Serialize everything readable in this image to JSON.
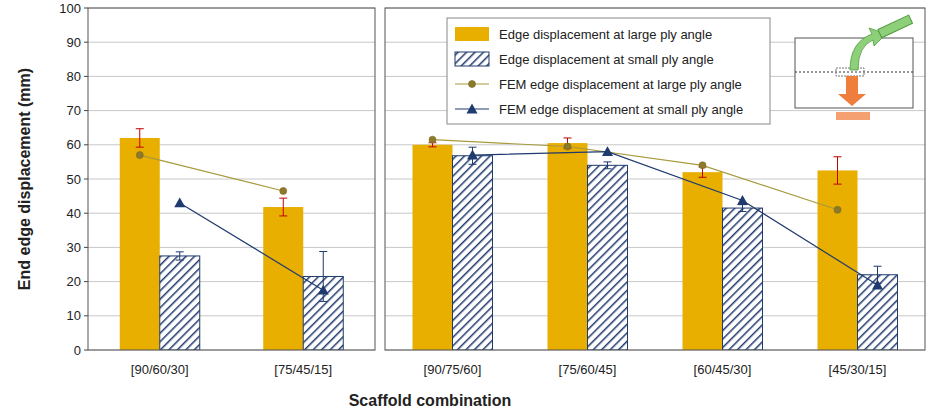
{
  "chart_data": [
    {
      "type": "bar",
      "y_label": "End edge displacement (mm)",
      "x_label": "Scaffold combination",
      "categories": [
        "[90/60/30]",
        "[75/45/15]"
      ],
      "ylim": [
        0,
        100
      ],
      "yticks": [
        0,
        10,
        20,
        30,
        40,
        50,
        60,
        70,
        80,
        90,
        100
      ],
      "grid": true,
      "series": [
        {
          "type": "bar",
          "color": "#E8AE00",
          "values": [
            62,
            41.8
          ],
          "errors": [
            2.7,
            2.6
          ]
        },
        {
          "type": "bar",
          "color": "#1F3A6E",
          "values": [
            27.5,
            21.5
          ],
          "errors": [
            1.2,
            7.3
          ]
        },
        {
          "type": "line",
          "color": "#A89A3C",
          "marker": "circle",
          "values": [
            57,
            46.5
          ]
        },
        {
          "type": "line",
          "color": "#1F3A6E",
          "marker": "triangle",
          "values": [
            43,
            17.5
          ]
        }
      ]
    },
    {
      "type": "bar",
      "categories": [
        "[90/75/60]",
        "[75/60/45]",
        "[60/45/30]",
        "[45/30/15]"
      ],
      "ylim": [
        0,
        100
      ],
      "yticks": [
        0,
        10,
        20,
        30,
        40,
        50,
        60,
        70,
        80,
        90,
        100
      ],
      "grid": true,
      "tick_labels": false,
      "legend": "top",
      "series": [
        {
          "type": "bar",
          "name": "Edge displacement at large ply angle",
          "color": "#E8AE00",
          "values": [
            60,
            60.5,
            52,
            52.5
          ],
          "errors": [
            0.6,
            1.5,
            1.5,
            4
          ]
        },
        {
          "type": "bar",
          "name": "Edge displacement at small ply angle",
          "color": "#1F3A6E",
          "values": [
            56.8,
            54,
            41.5,
            22
          ],
          "errors": [
            2.5,
            1,
            1,
            2.5
          ]
        },
        {
          "type": "line",
          "name": "FEM edge displacement at large ply angle",
          "color": "#A89A3C",
          "marker": "circle",
          "values": [
            61.5,
            59.5,
            54,
            41
          ]
        },
        {
          "type": "line",
          "name": "FEM edge displacement at small ply angle",
          "color": "#1F3A6E",
          "marker": "triangle",
          "values": [
            57,
            58,
            43.7,
            19
          ]
        }
      ]
    }
  ]
}
